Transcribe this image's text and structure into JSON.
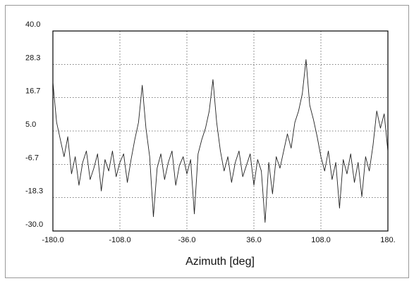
{
  "chart_data": {
    "type": "line",
    "x_label": "Azimuth [deg]",
    "x": [
      -180,
      -176,
      -172,
      -168,
      -164,
      -160,
      -156,
      -152,
      -148,
      -144,
      -140,
      -136,
      -132,
      -128,
      -124,
      -120,
      -116,
      -112,
      -108,
      -104,
      -100,
      -96,
      -92,
      -88,
      -84,
      -80,
      -76,
      -72,
      -68,
      -64,
      -60,
      -56,
      -52,
      -48,
      -44,
      -40,
      -36,
      -32,
      -28,
      -24,
      -20,
      -16,
      -12,
      -8,
      -4,
      0,
      4,
      8,
      12,
      16,
      20,
      24,
      28,
      32,
      36,
      40,
      44,
      48,
      52,
      56,
      60,
      64,
      68,
      72,
      76,
      80,
      84,
      88,
      92,
      96,
      100,
      104,
      108,
      112,
      116,
      120,
      124,
      128,
      132,
      136,
      140,
      144,
      148,
      152,
      156,
      160,
      164,
      168,
      172,
      176,
      180
    ],
    "values": [
      22,
      8,
      2,
      -4,
      3,
      -10,
      -4,
      -14,
      -6,
      -2,
      -12,
      -8,
      -3,
      -16,
      -5,
      -9,
      -2,
      -11,
      -6,
      -3,
      -13,
      -5,
      2,
      8,
      21,
      6,
      -4,
      -25,
      -8,
      -3,
      -12,
      -6,
      -2,
      -14,
      -7,
      -4,
      -10,
      -5,
      -24,
      -3,
      2,
      6,
      12,
      23,
      8,
      -2,
      -9,
      -4,
      -13,
      -6,
      -2,
      -11,
      -7,
      -3,
      -14,
      -5,
      -9,
      -27,
      -6,
      -17,
      -4,
      -8,
      -2,
      4,
      -1,
      8,
      12,
      18,
      30,
      14,
      9,
      3,
      -4,
      -9,
      -2,
      -12,
      -6,
      -22,
      -5,
      -10,
      -3,
      -13,
      -6,
      -18,
      -4,
      -9,
      0,
      12,
      6,
      11,
      -2
    ],
    "color": "#222222",
    "xlim": [
      -180,
      180
    ],
    "xticks": [
      {
        "value": -180,
        "label": "-180.0"
      },
      {
        "value": -108,
        "label": "-108.0"
      },
      {
        "value": -36,
        "label": "-36.0"
      },
      {
        "value": 36,
        "label": "36.0"
      },
      {
        "value": 108,
        "label": "108.0"
      },
      {
        "value": 180,
        "label": "180."
      }
    ],
    "ylim": [
      -30,
      40
    ],
    "yticks": [
      {
        "value": 40,
        "label": "40.0"
      },
      {
        "value": 28.3,
        "label": "28.3"
      },
      {
        "value": 16.7,
        "label": "16.7"
      },
      {
        "value": 5,
        "label": "5.0"
      },
      {
        "value": -6.7,
        "label": "-6.7"
      },
      {
        "value": -18.3,
        "label": "-18.3"
      },
      {
        "value": -30,
        "label": "-30.0"
      }
    ],
    "grid": true
  }
}
